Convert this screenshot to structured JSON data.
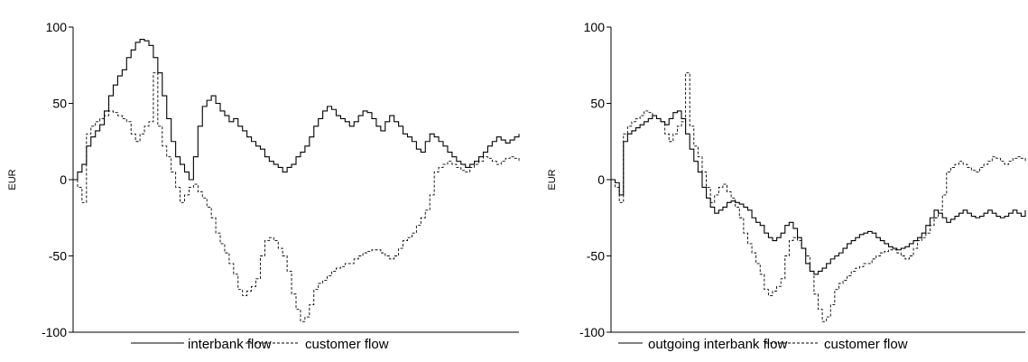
{
  "chart_data": [
    {
      "type": "line",
      "ylabel": "EUR",
      "ylim": [
        -100,
        100
      ],
      "yticks": [
        -100,
        -50,
        0,
        50,
        100
      ],
      "x": [
        0,
        1,
        2,
        3,
        4,
        5,
        6,
        7,
        8,
        9,
        10,
        11,
        12,
        13,
        14,
        15,
        16,
        17,
        18,
        19,
        20,
        21,
        22,
        23,
        24,
        25,
        26,
        27,
        28,
        29,
        30,
        31,
        32,
        33,
        34,
        35,
        36,
        37,
        38,
        39,
        40,
        41,
        42,
        43,
        44,
        45,
        46,
        47,
        48,
        49,
        50,
        51,
        52,
        53,
        54,
        55,
        56,
        57,
        58,
        59,
        60,
        61,
        62,
        63,
        64,
        65,
        66,
        67,
        68,
        69,
        70,
        71,
        72,
        73,
        74,
        75,
        76,
        77,
        78,
        79,
        80,
        81,
        82,
        83,
        84,
        85,
        86,
        87,
        88,
        89,
        90,
        91,
        92,
        93,
        94,
        95,
        96,
        97,
        98,
        99,
        100
      ],
      "legend_position": "bottom-center",
      "series": [
        {
          "name": "interbank flow",
          "dash": "solid",
          "values": [
            0,
            5,
            10,
            22,
            28,
            32,
            36,
            45,
            55,
            62,
            68,
            72,
            80,
            85,
            90,
            92,
            91,
            88,
            80,
            70,
            55,
            40,
            25,
            15,
            10,
            5,
            0,
            15,
            35,
            48,
            52,
            55,
            50,
            45,
            42,
            38,
            40,
            35,
            32,
            28,
            25,
            22,
            20,
            15,
            12,
            10,
            8,
            5,
            8,
            10,
            15,
            18,
            22,
            28,
            35,
            40,
            45,
            48,
            46,
            42,
            40,
            38,
            35,
            38,
            42,
            45,
            44,
            40,
            35,
            32,
            38,
            42,
            38,
            35,
            30,
            28,
            25,
            20,
            18,
            25,
            30,
            28,
            25,
            22,
            18,
            15,
            12,
            10,
            8,
            10,
            12,
            15,
            18,
            22,
            25,
            28,
            26,
            24,
            26,
            28,
            30
          ]
        },
        {
          "name": "customer flow",
          "dash": "dashed",
          "values": [
            0,
            -5,
            -15,
            30,
            35,
            38,
            40,
            42,
            45,
            44,
            42,
            40,
            38,
            30,
            25,
            30,
            35,
            38,
            70,
            35,
            22,
            15,
            5,
            -5,
            -15,
            -10,
            -5,
            -3,
            -8,
            -12,
            -18,
            -25,
            -35,
            -42,
            -48,
            -55,
            -62,
            -72,
            -76,
            -73,
            -70,
            -65,
            -50,
            -40,
            -38,
            -40,
            -45,
            -50,
            -60,
            -75,
            -85,
            -93,
            -90,
            -82,
            -72,
            -68,
            -66,
            -63,
            -60,
            -58,
            -57,
            -55,
            -55,
            -52,
            -50,
            -48,
            -47,
            -46,
            -46,
            -48,
            -50,
            -52,
            -50,
            -45,
            -40,
            -38,
            -35,
            -30,
            -25,
            -20,
            -10,
            5,
            8,
            10,
            12,
            10,
            8,
            6,
            5,
            8,
            10,
            12,
            15,
            14,
            12,
            10,
            12,
            14,
            15,
            14,
            12
          ]
        }
      ]
    },
    {
      "type": "line",
      "ylabel": "EUR",
      "ylim": [
        -100,
        100
      ],
      "yticks": [
        -100,
        -50,
        0,
        50,
        100
      ],
      "x": [
        0,
        1,
        2,
        3,
        4,
        5,
        6,
        7,
        8,
        9,
        10,
        11,
        12,
        13,
        14,
        15,
        16,
        17,
        18,
        19,
        20,
        21,
        22,
        23,
        24,
        25,
        26,
        27,
        28,
        29,
        30,
        31,
        32,
        33,
        34,
        35,
        36,
        37,
        38,
        39,
        40,
        41,
        42,
        43,
        44,
        45,
        46,
        47,
        48,
        49,
        50,
        51,
        52,
        53,
        54,
        55,
        56,
        57,
        58,
        59,
        60,
        61,
        62,
        63,
        64,
        65,
        66,
        67,
        68,
        69,
        70,
        71,
        72,
        73,
        74,
        75,
        76,
        77,
        78,
        79,
        80,
        81,
        82,
        83,
        84,
        85,
        86,
        87,
        88,
        89,
        90,
        91,
        92,
        93,
        94,
        95,
        96,
        97,
        98,
        99,
        100
      ],
      "legend_position": "bottom-center",
      "series": [
        {
          "name": "outgoing interbank flow",
          "dash": "solid",
          "values": [
            0,
            -2,
            -10,
            25,
            30,
            32,
            34,
            36,
            38,
            40,
            42,
            40,
            38,
            36,
            40,
            44,
            45,
            40,
            30,
            20,
            12,
            5,
            -5,
            -12,
            -18,
            -22,
            -20,
            -18,
            -15,
            -14,
            -15,
            -16,
            -18,
            -20,
            -25,
            -28,
            -30,
            -35,
            -38,
            -40,
            -38,
            -35,
            -30,
            -28,
            -32,
            -38,
            -45,
            -55,
            -60,
            -62,
            -60,
            -58,
            -55,
            -52,
            -50,
            -48,
            -45,
            -42,
            -40,
            -38,
            -36,
            -35,
            -34,
            -35,
            -38,
            -40,
            -42,
            -44,
            -45,
            -46,
            -45,
            -44,
            -42,
            -40,
            -38,
            -35,
            -30,
            -25,
            -20,
            -22,
            -25,
            -28,
            -26,
            -24,
            -22,
            -20,
            -22,
            -24,
            -25,
            -24,
            -22,
            -20,
            -22,
            -24,
            -25,
            -24,
            -22,
            -20,
            -22,
            -24,
            -20
          ]
        },
        {
          "name": "customer flow",
          "dash": "dashed",
          "values": [
            0,
            -5,
            -15,
            30,
            35,
            38,
            40,
            42,
            45,
            44,
            42,
            40,
            38,
            30,
            25,
            30,
            35,
            38,
            70,
            35,
            22,
            15,
            5,
            -5,
            -15,
            -10,
            -5,
            -3,
            -8,
            -12,
            -18,
            -25,
            -35,
            -42,
            -48,
            -55,
            -62,
            -72,
            -76,
            -73,
            -70,
            -65,
            -50,
            -40,
            -38,
            -40,
            -45,
            -50,
            -60,
            -75,
            -85,
            -93,
            -90,
            -82,
            -72,
            -68,
            -66,
            -63,
            -60,
            -58,
            -57,
            -55,
            -55,
            -52,
            -50,
            -48,
            -47,
            -46,
            -46,
            -48,
            -50,
            -52,
            -50,
            -45,
            -40,
            -38,
            -35,
            -30,
            -25,
            -20,
            -10,
            5,
            8,
            10,
            12,
            10,
            8,
            6,
            5,
            8,
            10,
            12,
            15,
            14,
            12,
            10,
            12,
            14,
            15,
            14,
            12
          ]
        }
      ]
    }
  ]
}
